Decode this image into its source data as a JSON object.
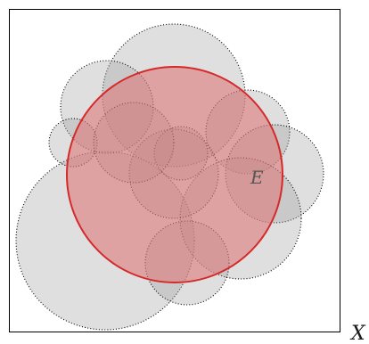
{
  "diagram": {
    "universe_label": "X",
    "set_label": "E",
    "colors": {
      "background": "#ffffff",
      "frame_stroke": "#000000",
      "gray_fill": "#9a9a9a",
      "gray_stroke": "#000000",
      "set_fill": "#e07a7a",
      "set_stroke": "#d42a2a"
    },
    "gray_circle_count": 11
  }
}
